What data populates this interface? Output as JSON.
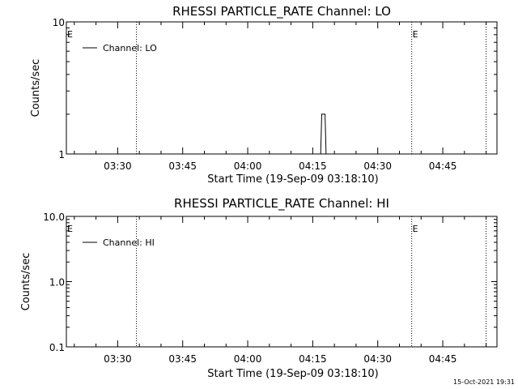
{
  "footer": {
    "timestamp": "15-Oct-2021 19:31"
  },
  "chart_data": [
    {
      "type": "line",
      "title": "RHESSI PARTICLE_RATE Channel: LO",
      "xlabel": "Start Time (19-Sep-09 03:18:10)",
      "ylabel": "Counts/sec",
      "yscale": "log",
      "ylim": [
        1,
        10
      ],
      "yticks": [
        {
          "value": 1,
          "label": "1"
        },
        {
          "value": 10,
          "label": "10"
        }
      ],
      "xlim": [
        "03:18:10",
        "04:57:30"
      ],
      "xticks": [
        "03:30",
        "03:45",
        "04:00",
        "04:15",
        "04:30",
        "04:45"
      ],
      "grid": false,
      "legend_position": "top-left",
      "series": [
        {
          "name": "Channel: LO",
          "x": [
            "03:18:10",
            "04:16:50",
            "04:17:05",
            "04:17:50",
            "04:18:05",
            "04:57:30"
          ],
          "y": [
            1,
            1,
            2,
            2,
            1,
            1
          ]
        }
      ],
      "markers": [
        {
          "time": "03:34:20",
          "label": ""
        },
        {
          "time": "04:37:50",
          "label": "E"
        },
        {
          "time": "04:55:00",
          "label": ""
        }
      ],
      "corner_label": "E"
    },
    {
      "type": "line",
      "title": "RHESSI PARTICLE_RATE Channel: HI",
      "xlabel": "Start Time (19-Sep-09 03:18:10)",
      "ylabel": "Counts/sec",
      "yscale": "log",
      "ylim": [
        0.1,
        10
      ],
      "yticks": [
        {
          "value": 0.1,
          "label": "0.1"
        },
        {
          "value": 1,
          "label": "1.0"
        },
        {
          "value": 10,
          "label": "10.0"
        }
      ],
      "xlim": [
        "03:18:10",
        "04:57:30"
      ],
      "xticks": [
        "03:30",
        "03:45",
        "04:00",
        "04:15",
        "04:30",
        "04:45"
      ],
      "grid": false,
      "legend_position": "top-left",
      "series": [
        {
          "name": "Channel: HI",
          "x": [],
          "y": []
        }
      ],
      "markers": [
        {
          "time": "03:34:20",
          "label": ""
        },
        {
          "time": "04:37:50",
          "label": "E"
        },
        {
          "time": "04:55:00",
          "label": ""
        }
      ],
      "corner_label": "E"
    }
  ]
}
